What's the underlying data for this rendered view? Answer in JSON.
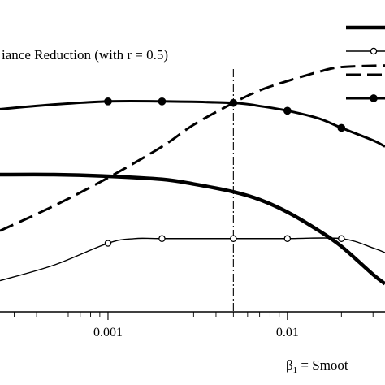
{
  "chart_data": {
    "type": "line",
    "title": "iance Reduction (with r = 0.5)",
    "xlabel": "β",
    "xlabel_sub": "1",
    "xlabel_tail": " = Smoot",
    "x_scale": "log",
    "xlim": [
      0.00025,
      0.035
    ],
    "ylim": [
      0,
      1
    ],
    "x_ticks": [
      {
        "value": 0.001,
        "label": "0.001"
      },
      {
        "value": 0.01,
        "label": "0.01"
      }
    ],
    "reference_line_x": 0.005,
    "legend": {
      "position": "top-right"
    },
    "series": [
      {
        "style": "thick-solid",
        "points": [
          [
            0.00025,
            0.44
          ],
          [
            0.0005,
            0.44
          ],
          [
            0.001,
            0.435
          ],
          [
            0.002,
            0.425
          ],
          [
            0.003,
            0.41
          ],
          [
            0.005,
            0.385
          ],
          [
            0.007,
            0.36
          ],
          [
            0.01,
            0.32
          ],
          [
            0.015,
            0.26
          ],
          [
            0.02,
            0.21
          ],
          [
            0.03,
            0.12
          ],
          [
            0.035,
            0.09
          ]
        ]
      },
      {
        "style": "thin-solid-open-circles",
        "points": [
          [
            0.00025,
            0.1
          ],
          [
            0.0005,
            0.15
          ],
          [
            0.001,
            0.22
          ],
          [
            0.0014,
            0.235
          ],
          [
            0.002,
            0.235
          ],
          [
            0.005,
            0.235
          ],
          [
            0.01,
            0.235
          ],
          [
            0.02,
            0.235
          ],
          [
            0.03,
            0.205
          ],
          [
            0.035,
            0.19
          ]
        ],
        "markers": [
          [
            0.001,
            0.22
          ],
          [
            0.002,
            0.235
          ],
          [
            0.005,
            0.235
          ],
          [
            0.01,
            0.235
          ],
          [
            0.02,
            0.235
          ]
        ]
      },
      {
        "style": "thick-dashed",
        "points": [
          [
            0.00025,
            0.26
          ],
          [
            0.0005,
            0.34
          ],
          [
            0.001,
            0.43
          ],
          [
            0.002,
            0.53
          ],
          [
            0.003,
            0.6
          ],
          [
            0.005,
            0.67
          ],
          [
            0.007,
            0.71
          ],
          [
            0.01,
            0.74
          ],
          [
            0.015,
            0.77
          ],
          [
            0.02,
            0.785
          ],
          [
            0.035,
            0.79
          ]
        ]
      },
      {
        "style": "thick-solid-filled-circles",
        "points": [
          [
            0.00025,
            0.65
          ],
          [
            0.0005,
            0.665
          ],
          [
            0.001,
            0.675
          ],
          [
            0.002,
            0.675
          ],
          [
            0.005,
            0.67
          ],
          [
            0.007,
            0.66
          ],
          [
            0.01,
            0.645
          ],
          [
            0.015,
            0.62
          ],
          [
            0.02,
            0.59
          ],
          [
            0.03,
            0.55
          ],
          [
            0.035,
            0.53
          ]
        ],
        "markers": [
          [
            0.001,
            0.675
          ],
          [
            0.002,
            0.675
          ],
          [
            0.005,
            0.67
          ],
          [
            0.01,
            0.645
          ],
          [
            0.02,
            0.59
          ]
        ]
      }
    ]
  }
}
